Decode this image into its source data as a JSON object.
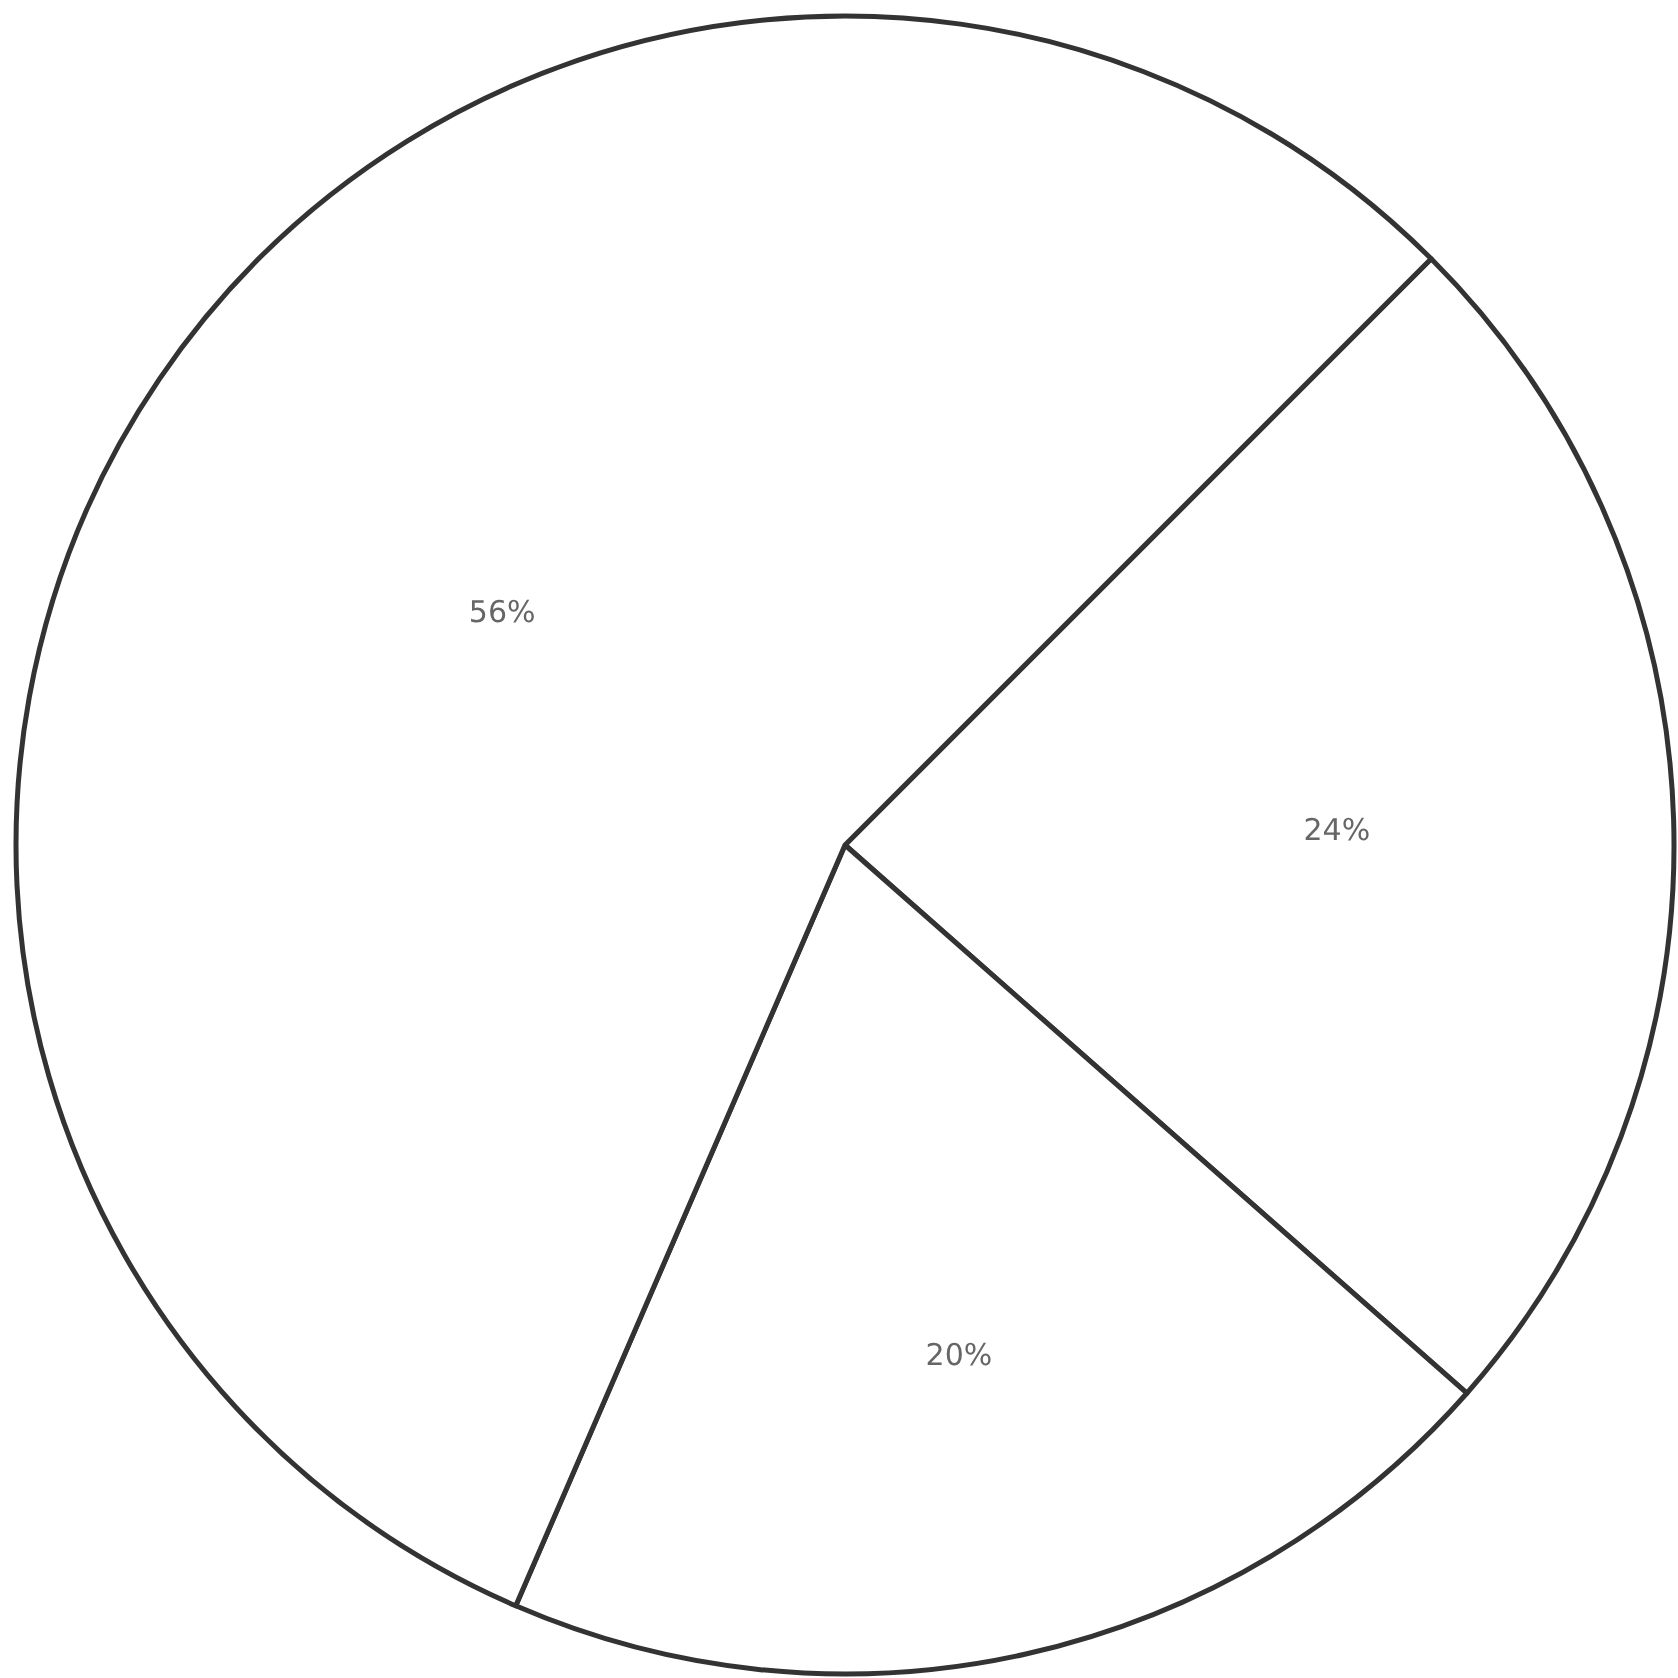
{
  "chart_data": {
    "type": "pie",
    "categories": [
      null,
      null,
      null
    ],
    "values": [
      24,
      20,
      56
    ],
    "colors": [
      "#ffffff",
      "#ffffff",
      "#ffffff"
    ],
    "value_labels": [
      "24%",
      "20%",
      "56%"
    ],
    "legend": false
  }
}
